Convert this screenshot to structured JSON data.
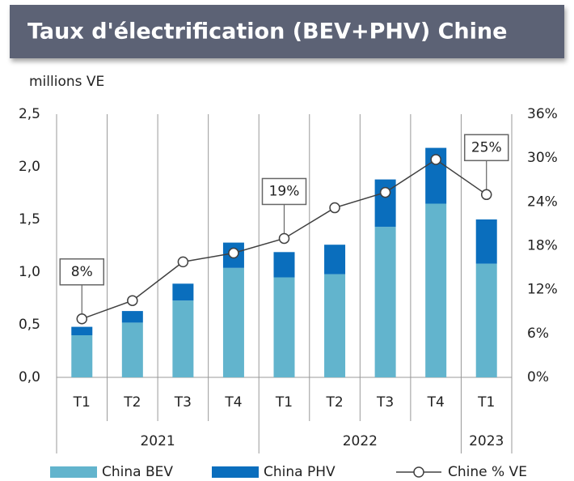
{
  "chart_data": {
    "type": "bar",
    "stacked": true,
    "title": "Taux d'électrification (BEV+PHV) Chine",
    "y_label": "millions VE",
    "groups": [
      {
        "name": "2021",
        "categories": [
          "T1",
          "T2",
          "T3",
          "T4"
        ]
      },
      {
        "name": "2022",
        "categories": [
          "T1",
          "T2",
          "T3",
          "T4"
        ]
      },
      {
        "name": "2023",
        "categories": [
          "T1"
        ]
      }
    ],
    "series": [
      {
        "name": "China BEV",
        "type": "bar",
        "color": "#62b4cd",
        "values": [
          0.4,
          0.52,
          0.73,
          1.04,
          0.95,
          0.98,
          1.43,
          1.65,
          1.08
        ]
      },
      {
        "name": "China PHV",
        "type": "bar",
        "color": "#0a6ebd",
        "values": [
          0.08,
          0.11,
          0.16,
          0.24,
          0.24,
          0.28,
          0.45,
          0.53,
          0.42
        ]
      },
      {
        "name": "Chine % VE",
        "type": "line",
        "axis": "y2",
        "color": "#404040",
        "values": [
          8,
          10.5,
          15.8,
          17,
          19,
          23.2,
          25.3,
          29.8,
          25
        ],
        "value_labels": [
          "8%",
          null,
          null,
          null,
          "19%",
          null,
          null,
          null,
          "25%"
        ]
      }
    ],
    "ylim": [
      0,
      2.5
    ],
    "yticks": [
      {
        "value": 0,
        "label": "0,0"
      },
      {
        "value": 0.5,
        "label": "0,5"
      },
      {
        "value": 1,
        "label": "1,0"
      },
      {
        "value": 1.5,
        "label": "1,5"
      },
      {
        "value": 2,
        "label": "2,0"
      },
      {
        "value": 2.5,
        "label": "2,5"
      }
    ],
    "y2lim": [
      0,
      36
    ],
    "y2ticks": [
      {
        "value": 0,
        "label": "0%"
      },
      {
        "value": 6,
        "label": "6%"
      },
      {
        "value": 12,
        "label": "12%"
      },
      {
        "value": 18,
        "label": "18%"
      },
      {
        "value": 24,
        "label": "24%"
      },
      {
        "value": 30,
        "label": "30%"
      },
      {
        "value": 36,
        "label": "36%"
      }
    ],
    "legend": "bottom"
  }
}
